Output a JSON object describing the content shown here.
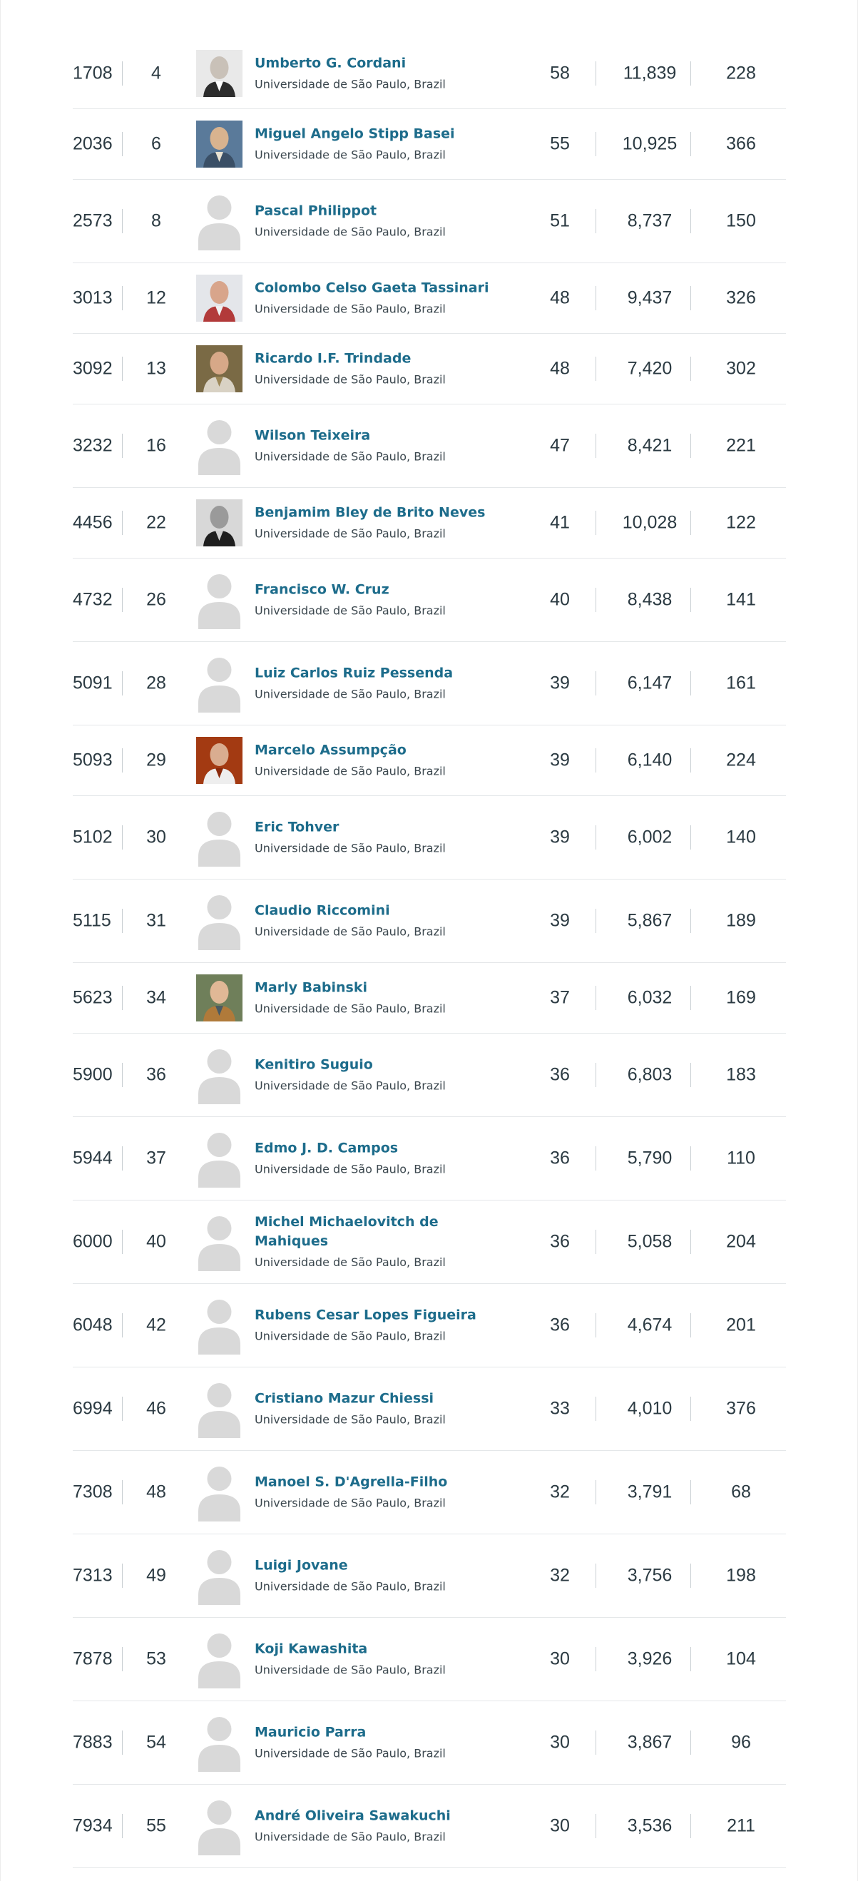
{
  "affiliation_default": "Universidade de São Paulo, Brazil",
  "rows": [
    {
      "world_rank": "1708",
      "national_rank": "4",
      "name": "Umberto G. Cordani",
      "affiliation": "Universidade de São Paulo, Brazil",
      "h_index": "58",
      "citations": "11,839",
      "publications": "228",
      "avatar": "photo-grey"
    },
    {
      "world_rank": "2036",
      "national_rank": "6",
      "name": "Miguel Angelo Stipp Basei",
      "affiliation": "Universidade de São Paulo, Brazil",
      "h_index": "55",
      "citations": "10,925",
      "publications": "366",
      "avatar": "photo-outdoor"
    },
    {
      "world_rank": "2573",
      "national_rank": "8",
      "name": "Pascal Philippot",
      "affiliation": "Universidade de São Paulo, Brazil",
      "h_index": "51",
      "citations": "8,737",
      "publications": "150",
      "avatar": "placeholder"
    },
    {
      "world_rank": "3013",
      "national_rank": "12",
      "name": "Colombo Celso Gaeta Tassinari",
      "affiliation": "Universidade de São Paulo, Brazil",
      "h_index": "48",
      "citations": "9,437",
      "publications": "326",
      "avatar": "photo-plaid"
    },
    {
      "world_rank": "3092",
      "national_rank": "13",
      "name": "Ricardo I.F. Trindade",
      "affiliation": "Universidade de São Paulo, Brazil",
      "h_index": "48",
      "citations": "7,420",
      "publications": "302",
      "avatar": "photo-warm"
    },
    {
      "world_rank": "3232",
      "national_rank": "16",
      "name": "Wilson Teixeira",
      "affiliation": "Universidade de São Paulo, Brazil",
      "h_index": "47",
      "citations": "8,421",
      "publications": "221",
      "avatar": "placeholder"
    },
    {
      "world_rank": "4456",
      "national_rank": "22",
      "name": "Benjamim Bley de Brito Neves",
      "affiliation": "Universidade de São Paulo, Brazil",
      "h_index": "41",
      "citations": "10,028",
      "publications": "122",
      "avatar": "photo-bw"
    },
    {
      "world_rank": "4732",
      "national_rank": "26",
      "name": "Francisco W. Cruz",
      "affiliation": "Universidade de São Paulo, Brazil",
      "h_index": "40",
      "citations": "8,438",
      "publications": "141",
      "avatar": "placeholder"
    },
    {
      "world_rank": "5091",
      "national_rank": "28",
      "name": "Luiz Carlos Ruiz Pessenda",
      "affiliation": "Universidade de São Paulo, Brazil",
      "h_index": "39",
      "citations": "6,147",
      "publications": "161",
      "avatar": "placeholder"
    },
    {
      "world_rank": "5093",
      "national_rank": "29",
      "name": "Marcelo Assumpção",
      "affiliation": "Universidade de São Paulo, Brazil",
      "h_index": "39",
      "citations": "6,140",
      "publications": "224",
      "avatar": "photo-red"
    },
    {
      "world_rank": "5102",
      "national_rank": "30",
      "name": "Eric Tohver",
      "affiliation": "Universidade de São Paulo, Brazil",
      "h_index": "39",
      "citations": "6,002",
      "publications": "140",
      "avatar": "placeholder"
    },
    {
      "world_rank": "5115",
      "national_rank": "31",
      "name": "Claudio Riccomini",
      "affiliation": "Universidade de São Paulo, Brazil",
      "h_index": "39",
      "citations": "5,867",
      "publications": "189",
      "avatar": "placeholder"
    },
    {
      "world_rank": "5623",
      "national_rank": "34",
      "name": "Marly Babinski",
      "affiliation": "Universidade de São Paulo, Brazil",
      "h_index": "37",
      "citations": "6,032",
      "publications": "169",
      "avatar": "photo-woman"
    },
    {
      "world_rank": "5900",
      "national_rank": "36",
      "name": "Kenitiro Suguio",
      "affiliation": "Universidade de São Paulo, Brazil",
      "h_index": "36",
      "citations": "6,803",
      "publications": "183",
      "avatar": "placeholder"
    },
    {
      "world_rank": "5944",
      "national_rank": "37",
      "name": "Edmo J. D. Campos",
      "affiliation": "Universidade de São Paulo, Brazil",
      "h_index": "36",
      "citations": "5,790",
      "publications": "110",
      "avatar": "placeholder"
    },
    {
      "world_rank": "6000",
      "national_rank": "40",
      "name": "Michel Michaelovitch de Mahiques",
      "affiliation": "Universidade de São Paulo, Brazil",
      "h_index": "36",
      "citations": "5,058",
      "publications": "204",
      "avatar": "placeholder"
    },
    {
      "world_rank": "6048",
      "national_rank": "42",
      "name": "Rubens Cesar Lopes Figueira",
      "affiliation": "Universidade de São Paulo, Brazil",
      "h_index": "36",
      "citations": "4,674",
      "publications": "201",
      "avatar": "placeholder"
    },
    {
      "world_rank": "6994",
      "national_rank": "46",
      "name": "Cristiano Mazur Chiessi",
      "affiliation": "Universidade de São Paulo, Brazil",
      "h_index": "33",
      "citations": "4,010",
      "publications": "376",
      "avatar": "placeholder"
    },
    {
      "world_rank": "7308",
      "national_rank": "48",
      "name": "Manoel S. D'Agrella-Filho",
      "affiliation": "Universidade de São Paulo, Brazil",
      "h_index": "32",
      "citations": "3,791",
      "publications": "68",
      "avatar": "placeholder"
    },
    {
      "world_rank": "7313",
      "national_rank": "49",
      "name": "Luigi Jovane",
      "affiliation": "Universidade de São Paulo, Brazil",
      "h_index": "32",
      "citations": "3,756",
      "publications": "198",
      "avatar": "placeholder"
    },
    {
      "world_rank": "7878",
      "national_rank": "53",
      "name": "Koji Kawashita",
      "affiliation": "Universidade de São Paulo, Brazil",
      "h_index": "30",
      "citations": "3,926",
      "publications": "104",
      "avatar": "placeholder"
    },
    {
      "world_rank": "7883",
      "national_rank": "54",
      "name": "Mauricio Parra",
      "affiliation": "Universidade de São Paulo, Brazil",
      "h_index": "30",
      "citations": "3,867",
      "publications": "96",
      "avatar": "placeholder"
    },
    {
      "world_rank": "7934",
      "national_rank": "55",
      "name": "André Oliveira Sawakuchi",
      "affiliation": "Universidade de São Paulo, Brazil",
      "h_index": "30",
      "citations": "3,536",
      "publications": "211",
      "avatar": "placeholder"
    }
  ],
  "colors": {
    "name_link": "#1d6c8b",
    "text": "#2b3a42",
    "divider": "#e4e7e9",
    "placeholder_avatar": "#d9d9d9"
  }
}
